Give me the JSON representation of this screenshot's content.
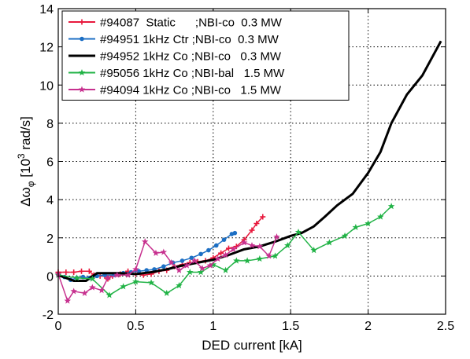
{
  "chart_data": {
    "type": "line",
    "xlabel": "DED current [kA]",
    "ylabel_prefix": "Δω",
    "ylabel_sub": "φ",
    "ylabel_unit_open": " [10",
    "ylabel_sup": "3",
    "ylabel_unit_close": " rad/s]",
    "xlim": [
      0,
      2.5
    ],
    "ylim": [
      -2,
      14
    ],
    "x_ticks": [
      "0",
      "0.5",
      "1",
      "1.5",
      "2",
      "2.5"
    ],
    "y_ticks": [
      "-2",
      "0",
      "2",
      "4",
      "6",
      "8",
      "10",
      "12",
      "14"
    ],
    "grid": true,
    "legend_position": "top-left",
    "series": [
      {
        "name": "#94087  Static      ;NBI-co  0.3 MW",
        "color": "#e8183c",
        "marker": "plus",
        "line_width": 1.5,
        "points": [
          [
            0.0,
            0.2
          ],
          [
            0.05,
            0.2
          ],
          [
            0.1,
            0.2
          ],
          [
            0.15,
            0.25
          ],
          [
            0.2,
            0.25
          ],
          [
            0.23,
            0.05
          ],
          [
            0.27,
            0.0
          ],
          [
            0.3,
            0.0
          ],
          [
            0.32,
            -0.15
          ],
          [
            0.35,
            0.0
          ],
          [
            0.4,
            0.1
          ],
          [
            0.45,
            0.25
          ],
          [
            0.5,
            0.1
          ],
          [
            0.55,
            0.05
          ],
          [
            0.6,
            0.1
          ],
          [
            0.65,
            0.25
          ],
          [
            0.7,
            0.3
          ],
          [
            0.75,
            0.5
          ],
          [
            0.8,
            0.6
          ],
          [
            0.85,
            0.7
          ],
          [
            0.9,
            0.75
          ],
          [
            0.95,
            0.8
          ],
          [
            1.0,
            0.95
          ],
          [
            1.05,
            1.2
          ],
          [
            1.1,
            1.45
          ],
          [
            1.15,
            1.55
          ],
          [
            1.2,
            1.9
          ],
          [
            1.25,
            2.4
          ],
          [
            1.28,
            2.75
          ],
          [
            1.32,
            3.1
          ]
        ]
      },
      {
        "name": "#94951 1kHz Ctr ;NBI-co  0.3 MW",
        "color": "#1c6fc4",
        "marker": "dot",
        "line_width": 1.5,
        "points": [
          [
            0.0,
            0.05
          ],
          [
            0.04,
            -0.05
          ],
          [
            0.08,
            -0.2
          ],
          [
            0.12,
            -0.1
          ],
          [
            0.16,
            -0.05
          ],
          [
            0.2,
            -0.1
          ],
          [
            0.25,
            0.0
          ],
          [
            0.3,
            0.05
          ],
          [
            0.36,
            0.05
          ],
          [
            0.42,
            0.15
          ],
          [
            0.47,
            0.2
          ],
          [
            0.52,
            0.25
          ],
          [
            0.57,
            0.3
          ],
          [
            0.62,
            0.35
          ],
          [
            0.68,
            0.5
          ],
          [
            0.74,
            0.7
          ],
          [
            0.8,
            0.8
          ],
          [
            0.86,
            0.95
          ],
          [
            0.92,
            1.15
          ],
          [
            0.97,
            1.35
          ],
          [
            1.02,
            1.6
          ],
          [
            1.07,
            1.9
          ],
          [
            1.12,
            2.2
          ],
          [
            1.14,
            2.25
          ]
        ]
      },
      {
        "name": "#94952 1kHz Co ;NBI-co   0.3 MW",
        "color": "#000000",
        "marker": "none",
        "line_width": 3,
        "points": [
          [
            0.0,
            0.05
          ],
          [
            0.1,
            -0.25
          ],
          [
            0.18,
            -0.25
          ],
          [
            0.25,
            0.15
          ],
          [
            0.35,
            0.15
          ],
          [
            0.4,
            0.15
          ],
          [
            0.5,
            0.1
          ],
          [
            0.6,
            0.2
          ],
          [
            0.7,
            0.35
          ],
          [
            0.8,
            0.55
          ],
          [
            0.9,
            0.7
          ],
          [
            1.0,
            0.85
          ],
          [
            1.1,
            1.1
          ],
          [
            1.2,
            1.4
          ],
          [
            1.3,
            1.55
          ],
          [
            1.4,
            1.8
          ],
          [
            1.5,
            2.1
          ],
          [
            1.57,
            2.25
          ],
          [
            1.65,
            2.6
          ],
          [
            1.72,
            3.1
          ],
          [
            1.8,
            3.7
          ],
          [
            1.9,
            4.3
          ],
          [
            2.0,
            5.4
          ],
          [
            2.08,
            6.5
          ],
          [
            2.15,
            8.0
          ],
          [
            2.25,
            9.5
          ],
          [
            2.35,
            10.5
          ],
          [
            2.47,
            12.3
          ]
        ]
      },
      {
        "name": "#95056 1kHz Co ;NBI-bal   1.5 MW",
        "color": "#21b346",
        "marker": "star",
        "line_width": 1.5,
        "points": [
          [
            0.0,
            0.05
          ],
          [
            0.12,
            -0.1
          ],
          [
            0.22,
            -0.15
          ],
          [
            0.33,
            -1.0
          ],
          [
            0.42,
            -0.55
          ],
          [
            0.5,
            -0.3
          ],
          [
            0.6,
            -0.35
          ],
          [
            0.7,
            -0.9
          ],
          [
            0.78,
            -0.5
          ],
          [
            0.85,
            0.2
          ],
          [
            0.92,
            0.2
          ],
          [
            1.0,
            0.6
          ],
          [
            1.08,
            0.3
          ],
          [
            1.15,
            0.8
          ],
          [
            1.22,
            0.8
          ],
          [
            1.3,
            0.9
          ],
          [
            1.4,
            1.05
          ],
          [
            1.48,
            1.6
          ],
          [
            1.55,
            2.3
          ],
          [
            1.65,
            1.35
          ],
          [
            1.75,
            1.75
          ],
          [
            1.85,
            2.1
          ],
          [
            1.92,
            2.55
          ],
          [
            2.0,
            2.75
          ],
          [
            2.08,
            3.1
          ],
          [
            2.15,
            3.65
          ]
        ]
      },
      {
        "name": "#94094 1kHz Co ;NBI-co   1.5 MW",
        "color": "#c7318f",
        "marker": "star",
        "line_width": 1.5,
        "points": [
          [
            0.0,
            0.1
          ],
          [
            0.06,
            -1.3
          ],
          [
            0.1,
            -0.8
          ],
          [
            0.17,
            -0.9
          ],
          [
            0.22,
            -0.6
          ],
          [
            0.28,
            -0.75
          ],
          [
            0.32,
            -0.1
          ],
          [
            0.38,
            0.05
          ],
          [
            0.45,
            0.05
          ],
          [
            0.5,
            0.35
          ],
          [
            0.56,
            1.8
          ],
          [
            0.63,
            1.2
          ],
          [
            0.68,
            1.25
          ],
          [
            0.73,
            0.7
          ],
          [
            0.78,
            0.3
          ],
          [
            0.83,
            0.55
          ],
          [
            0.88,
            0.8
          ],
          [
            0.93,
            0.4
          ],
          [
            0.98,
            0.55
          ],
          [
            1.03,
            0.9
          ],
          [
            1.08,
            1.1
          ],
          [
            1.13,
            1.4
          ],
          [
            1.2,
            1.75
          ],
          [
            1.25,
            1.6
          ],
          [
            1.3,
            1.55
          ],
          [
            1.36,
            1.05
          ],
          [
            1.41,
            2.05
          ]
        ]
      }
    ]
  }
}
